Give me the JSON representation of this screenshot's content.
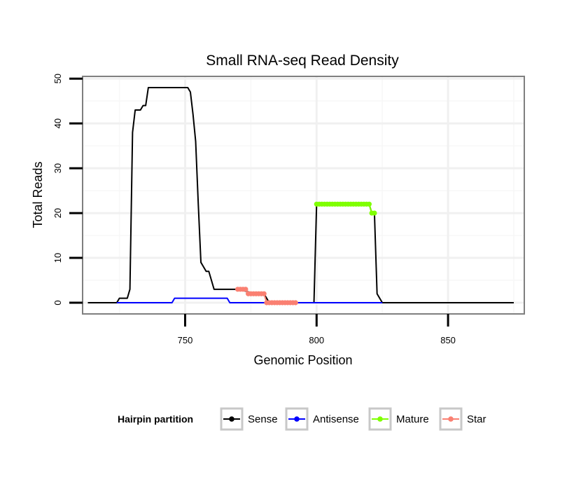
{
  "chart_data": {
    "type": "line",
    "title": "Small RNA-seq Read Density",
    "xlabel": "Genomic Position",
    "ylabel": "Total Reads",
    "xlim": [
      711,
      879
    ],
    "ylim": [
      -2.5,
      50.5
    ],
    "xticks": [
      750,
      800,
      850
    ],
    "yticks": [
      0,
      10,
      20,
      30,
      40,
      50
    ],
    "grid": true,
    "legend": {
      "title": "Hairpin partition",
      "position": "bottom",
      "entries": [
        {
          "name": "Sense",
          "color": "#000000"
        },
        {
          "name": "Antisense",
          "color": "#0000ff"
        },
        {
          "name": "Mature",
          "color": "#7fff00"
        },
        {
          "name": "Star",
          "color": "#fa8072"
        }
      ]
    },
    "series": [
      {
        "name": "Sense",
        "color": "#000000",
        "line": true,
        "markers": false,
        "points": [
          [
            713,
            0
          ],
          [
            724,
            0
          ],
          [
            725,
            1
          ],
          [
            728,
            1
          ],
          [
            729,
            3
          ],
          [
            730,
            38
          ],
          [
            731,
            43
          ],
          [
            733,
            43
          ],
          [
            734,
            44
          ],
          [
            735,
            44
          ],
          [
            736,
            48
          ],
          [
            738,
            48
          ],
          [
            751,
            48
          ],
          [
            752,
            47
          ],
          [
            753,
            42
          ],
          [
            754,
            36
          ],
          [
            755,
            22
          ],
          [
            756,
            9
          ],
          [
            757,
            8
          ],
          [
            758,
            7
          ],
          [
            759,
            7
          ],
          [
            760,
            5
          ],
          [
            761,
            3
          ],
          [
            768,
            3
          ],
          [
            770,
            3
          ],
          [
            777,
            2
          ],
          [
            780,
            2
          ],
          [
            782,
            0
          ],
          [
            799,
            0
          ],
          [
            800,
            22
          ],
          [
            820,
            22
          ],
          [
            821,
            20
          ],
          [
            822,
            20
          ],
          [
            823,
            2
          ],
          [
            824,
            1
          ],
          [
            825,
            0
          ],
          [
            875,
            0
          ]
        ]
      },
      {
        "name": "Antisense",
        "color": "#0000ff",
        "line": true,
        "markers": false,
        "points": [
          [
            724,
            0
          ],
          [
            745,
            0
          ],
          [
            746,
            1
          ],
          [
            766,
            1
          ],
          [
            767,
            0
          ],
          [
            825,
            0
          ]
        ]
      },
      {
        "name": "Mature",
        "color": "#7fff00",
        "line": true,
        "markers": true,
        "points": [
          [
            800,
            22
          ],
          [
            801,
            22
          ],
          [
            802,
            22
          ],
          [
            803,
            22
          ],
          [
            804,
            22
          ],
          [
            805,
            22
          ],
          [
            806,
            22
          ],
          [
            807,
            22
          ],
          [
            808,
            22
          ],
          [
            809,
            22
          ],
          [
            810,
            22
          ],
          [
            811,
            22
          ],
          [
            812,
            22
          ],
          [
            813,
            22
          ],
          [
            814,
            22
          ],
          [
            815,
            22
          ],
          [
            816,
            22
          ],
          [
            817,
            22
          ],
          [
            818,
            22
          ],
          [
            819,
            22
          ],
          [
            820,
            22
          ],
          [
            821,
            20
          ],
          [
            822,
            20
          ]
        ]
      },
      {
        "name": "Star",
        "color": "#fa8072",
        "line": true,
        "markers": true,
        "points": [
          [
            770,
            3
          ],
          [
            771,
            3
          ],
          [
            772,
            3
          ],
          [
            773,
            3
          ],
          [
            774,
            2
          ],
          [
            775,
            2
          ],
          [
            776,
            2
          ],
          [
            777,
            2
          ],
          [
            778,
            2
          ],
          [
            779,
            2
          ],
          [
            780,
            2
          ],
          [
            781,
            0
          ],
          [
            782,
            0
          ],
          [
            783,
            0
          ],
          [
            784,
            0
          ],
          [
            785,
            0
          ],
          [
            786,
            0
          ],
          [
            787,
            0
          ],
          [
            788,
            0
          ],
          [
            789,
            0
          ],
          [
            790,
            0
          ],
          [
            791,
            0
          ],
          [
            792,
            0
          ]
        ]
      }
    ]
  }
}
